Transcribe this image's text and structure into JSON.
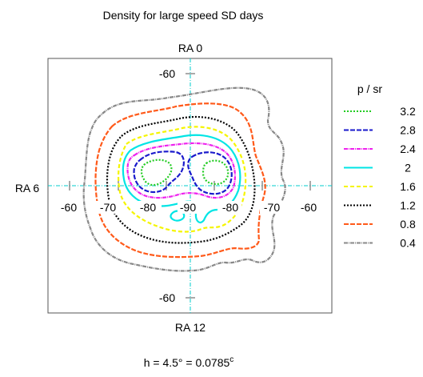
{
  "chart_data": {
    "type": "contour",
    "title": "Density for large speed SD days",
    "projection": "south polar azimuthal (declination rings)",
    "axis_labels": {
      "top": "RA 0",
      "bottom": "RA 12",
      "left": "RA 6"
    },
    "tick_labels": {
      "vertical_top": "-60",
      "vertical_bottom": "-60",
      "horizontal": [
        "-60",
        "-70",
        "-80",
        "-90",
        "-80",
        "-70",
        "-60"
      ]
    },
    "legend": {
      "title": "p / sr",
      "placement": "right",
      "entries": [
        {
          "label": "3.2",
          "color": "#22cc22",
          "dash": "2,2"
        },
        {
          "label": "2.8",
          "color": "#1a1acc",
          "dash": "6,2"
        },
        {
          "label": "2.4",
          "color": "#ee22ee",
          "dash": "5,1,1,1"
        },
        {
          "label": "2",
          "color": "#00e5e5",
          "dash": ""
        },
        {
          "label": "1.6",
          "color": "#f5f500",
          "dash": "5,3"
        },
        {
          "label": "1.2",
          "color": "#000000",
          "dash": "2,2"
        },
        {
          "label": "0.8",
          "color": "#ff5a1a",
          "dash": "6,2"
        },
        {
          "label": "0.4",
          "color": "#888888",
          "dash": "5,1,1,1"
        }
      ]
    },
    "levels": [
      0.4,
      0.8,
      1.2,
      1.6,
      2,
      2.4,
      2.8,
      3.2
    ],
    "peaks": [
      {
        "ra_hours": 6.0,
        "dec_deg": -80,
        "value": 3.4
      },
      {
        "ra_hours": 14.8,
        "dec_deg": -82,
        "value": 3.3
      }
    ],
    "grid": "crosshair",
    "footnote": "h = 4.5° = 0.0785",
    "footnote_superscript": "c"
  }
}
